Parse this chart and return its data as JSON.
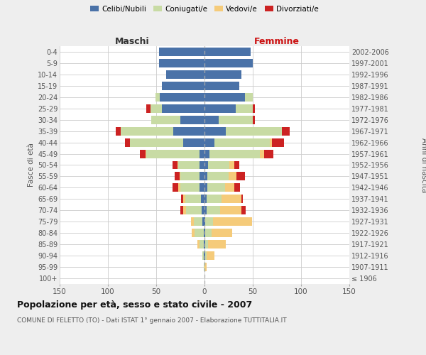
{
  "age_groups": [
    "100+",
    "95-99",
    "90-94",
    "85-89",
    "80-84",
    "75-79",
    "70-74",
    "65-69",
    "60-64",
    "55-59",
    "50-54",
    "45-49",
    "40-44",
    "35-39",
    "30-34",
    "25-29",
    "20-24",
    "15-19",
    "10-14",
    "5-9",
    "0-4"
  ],
  "birth_years": [
    "≤ 1906",
    "1907-1911",
    "1912-1916",
    "1917-1921",
    "1922-1926",
    "1927-1931",
    "1932-1936",
    "1937-1941",
    "1942-1946",
    "1947-1951",
    "1952-1956",
    "1957-1961",
    "1962-1966",
    "1967-1971",
    "1972-1976",
    "1977-1981",
    "1982-1986",
    "1987-1991",
    "1992-1996",
    "1997-2001",
    "2002-2006"
  ],
  "maschi_celibi": [
    0,
    0,
    1,
    1,
    1,
    2,
    3,
    4,
    5,
    5,
    5,
    5,
    22,
    32,
    25,
    44,
    46,
    44,
    40,
    47,
    47
  ],
  "maschi_coniugati": [
    0,
    1,
    1,
    4,
    9,
    9,
    16,
    16,
    20,
    20,
    22,
    55,
    55,
    55,
    30,
    12,
    5,
    0,
    0,
    0,
    0
  ],
  "maschi_vedovi": [
    0,
    0,
    0,
    2,
    3,
    3,
    3,
    2,
    2,
    1,
    1,
    1,
    0,
    0,
    0,
    0,
    0,
    0,
    0,
    0,
    0
  ],
  "maschi_divorziati": [
    0,
    0,
    0,
    0,
    0,
    0,
    3,
    2,
    6,
    5,
    5,
    6,
    5,
    5,
    0,
    4,
    0,
    0,
    0,
    0,
    0
  ],
  "femmine_nubili": [
    0,
    0,
    1,
    1,
    1,
    1,
    2,
    2,
    3,
    3,
    4,
    5,
    10,
    22,
    15,
    32,
    42,
    36,
    38,
    50,
    48
  ],
  "femmine_coniugate": [
    0,
    0,
    1,
    3,
    6,
    8,
    14,
    16,
    18,
    22,
    22,
    52,
    58,
    58,
    35,
    18,
    8,
    0,
    0,
    0,
    0
  ],
  "femmine_vedove": [
    0,
    2,
    8,
    18,
    22,
    40,
    22,
    20,
    10,
    8,
    5,
    5,
    2,
    0,
    0,
    0,
    0,
    0,
    0,
    0,
    0
  ],
  "femmine_divorziate": [
    0,
    0,
    0,
    0,
    0,
    0,
    5,
    2,
    6,
    9,
    5,
    9,
    12,
    8,
    2,
    2,
    0,
    0,
    0,
    0,
    0
  ],
  "color_celibi": "#4a72a8",
  "color_coniugati": "#c8dba4",
  "color_vedovi": "#f5cb7a",
  "color_divorziati": "#cc2222",
  "xlim": 150,
  "title": "Popolazione per età, sesso e stato civile - 2007",
  "subtitle": "COMUNE DI FELETTO (TO) - Dati ISTAT 1° gennaio 2007 - Elaborazione TUTTITALIA.IT",
  "ylabel_left": "Fasce di età",
  "ylabel_right": "Anni di nascita",
  "label_maschi": "Maschi",
  "label_femmine": "Femmine",
  "legend_labels": [
    "Celibi/Nubili",
    "Coniugati/e",
    "Vedovi/e",
    "Divorziati/e"
  ],
  "bg_color": "#eeeeee",
  "plot_bg": "#ffffff",
  "xtick_vals": [
    -150,
    -100,
    -50,
    0,
    50,
    100,
    150
  ],
  "xtick_labels": [
    "150",
    "100",
    "50",
    "0",
    "50",
    "100",
    "150"
  ]
}
